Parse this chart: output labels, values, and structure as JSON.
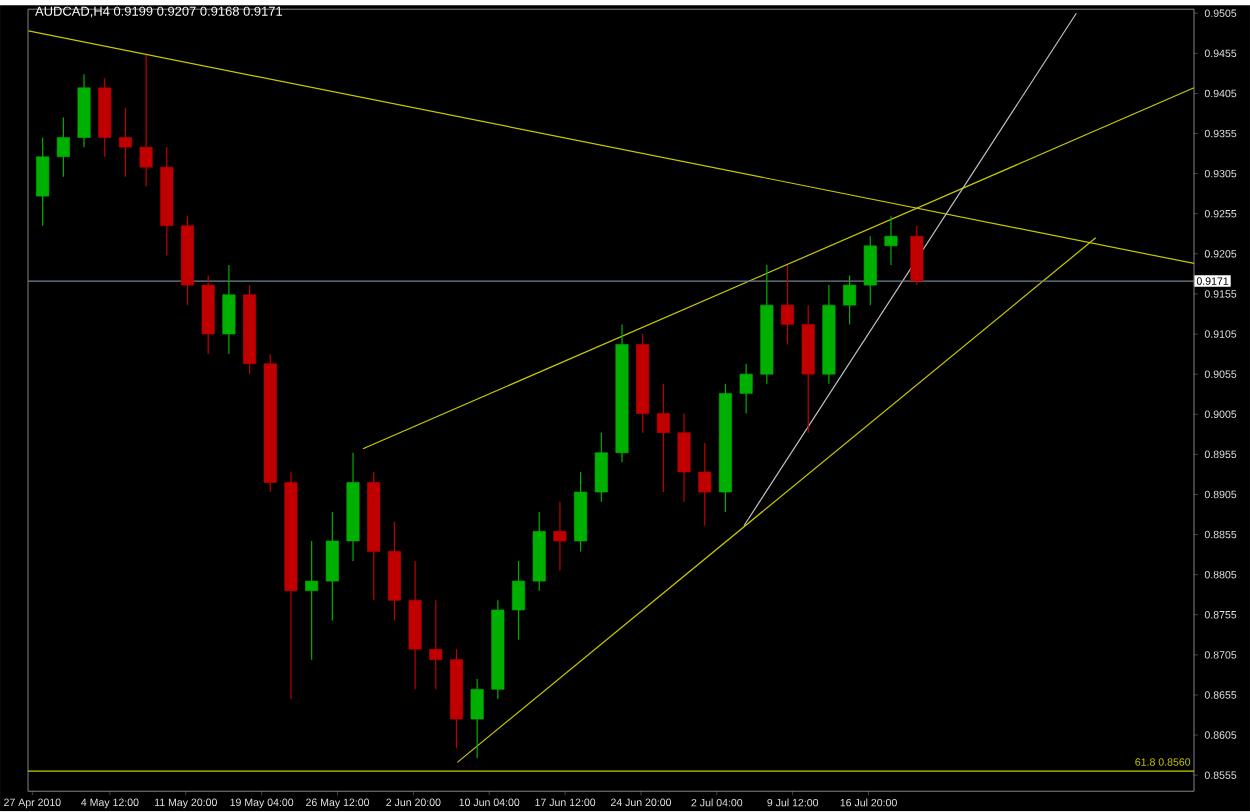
{
  "chart_data": {
    "type": "candlestick",
    "title": "AUDCAD,H4  0.9199 0.9207 0.9168 0.9171",
    "x": [
      "2010-04-28T00:00",
      "2010-04-30T00:00",
      "2010-05-02T00:00",
      "2010-05-04T00:00",
      "2010-05-06T00:00",
      "2010-05-08T00:00",
      "2010-05-10T00:00",
      "2010-05-12T00:00",
      "2010-05-14T00:00",
      "2010-05-16T00:00",
      "2010-05-18T00:00",
      "2010-05-20T00:00",
      "2010-05-22T00:00",
      "2010-05-24T00:00",
      "2010-05-26T00:00",
      "2010-05-28T00:00",
      "2010-05-30T00:00",
      "2010-06-01T00:00",
      "2010-06-03T00:00",
      "2010-06-05T00:00",
      "2010-06-07T00:00",
      "2010-06-09T00:00",
      "2010-06-11T00:00",
      "2010-06-13T00:00",
      "2010-06-15T00:00",
      "2010-06-17T00:00",
      "2010-06-19T00:00",
      "2010-06-21T00:00",
      "2010-06-23T00:00",
      "2010-06-25T00:00",
      "2010-06-27T00:00",
      "2010-06-29T00:00",
      "2010-07-01T00:00",
      "2010-07-03T00:00",
      "2010-07-05T00:00",
      "2010-07-07T00:00",
      "2010-07-09T00:00",
      "2010-07-11T00:00",
      "2010-07-13T00:00",
      "2010-07-15T00:00",
      "2010-07-17T00:00",
      "2010-07-19T00:00",
      "2010-07-21T12:00"
    ],
    "ohlc": [
      [
        0.9277,
        0.935,
        0.924,
        0.9326
      ],
      [
        0.9326,
        0.9375,
        0.9301,
        0.935
      ],
      [
        0.935,
        0.9429,
        0.9338,
        0.9412
      ],
      [
        0.9412,
        0.9424,
        0.9326,
        0.935
      ],
      [
        0.935,
        0.9387,
        0.9301,
        0.9338
      ],
      [
        0.9338,
        0.9453,
        0.9289,
        0.9313
      ],
      [
        0.9313,
        0.9338,
        0.9203,
        0.924
      ],
      [
        0.924,
        0.9252,
        0.9141,
        0.9166
      ],
      [
        0.9166,
        0.9178,
        0.908,
        0.9105
      ],
      [
        0.9105,
        0.9191,
        0.908,
        0.9154
      ],
      [
        0.9154,
        0.9166,
        0.9055,
        0.9068
      ],
      [
        0.9068,
        0.908,
        0.8908,
        0.892
      ],
      [
        0.892,
        0.8933,
        0.865,
        0.8785
      ],
      [
        0.8785,
        0.8847,
        0.8699,
        0.8797
      ],
      [
        0.8797,
        0.8883,
        0.8748,
        0.8847
      ],
      [
        0.8847,
        0.8957,
        0.8822,
        0.892
      ],
      [
        0.892,
        0.8933,
        0.8773,
        0.8834
      ],
      [
        0.8834,
        0.8871,
        0.8748,
        0.8773
      ],
      [
        0.8773,
        0.8822,
        0.8662,
        0.8712
      ],
      [
        0.8712,
        0.8773,
        0.8662,
        0.8699
      ],
      [
        0.8699,
        0.8712,
        0.8589,
        0.8625
      ],
      [
        0.8625,
        0.8675,
        0.8576,
        0.8662
      ],
      [
        0.8662,
        0.8773,
        0.865,
        0.8761
      ],
      [
        0.8761,
        0.8822,
        0.8724,
        0.8797
      ],
      [
        0.8797,
        0.8883,
        0.8785,
        0.8859
      ],
      [
        0.8859,
        0.8896,
        0.881,
        0.8847
      ],
      [
        0.8847,
        0.8933,
        0.8834,
        0.8908
      ],
      [
        0.8908,
        0.8982,
        0.8896,
        0.8957
      ],
      [
        0.8957,
        0.9117,
        0.8945,
        0.9092
      ],
      [
        0.9092,
        0.9105,
        0.8982,
        0.9006
      ],
      [
        0.9006,
        0.9043,
        0.8908,
        0.8982
      ],
      [
        0.8982,
        0.9006,
        0.8896,
        0.8933
      ],
      [
        0.8933,
        0.8969,
        0.8866,
        0.8908
      ],
      [
        0.8908,
        0.9043,
        0.8883,
        0.9031
      ],
      [
        0.9031,
        0.9068,
        0.9006,
        0.9055
      ],
      [
        0.9055,
        0.9191,
        0.9043,
        0.9141
      ],
      [
        0.9141,
        0.9191,
        0.9092,
        0.9117
      ],
      [
        0.9117,
        0.9141,
        0.8982,
        0.9055
      ],
      [
        0.9055,
        0.9166,
        0.9043,
        0.9141
      ],
      [
        0.9141,
        0.9178,
        0.9117,
        0.9166
      ],
      [
        0.9166,
        0.9227,
        0.9141,
        0.9215
      ],
      [
        0.9215,
        0.9252,
        0.9191,
        0.9227
      ],
      [
        0.9227,
        0.924,
        0.9166,
        0.9171
      ]
    ],
    "colors": [
      "#00b000",
      "#00b000",
      "#00b000",
      "#c00000",
      "#c00000",
      "#c00000",
      "#c00000",
      "#c00000",
      "#c00000",
      "#00b000",
      "#c00000",
      "#c00000",
      "#c00000",
      "#00b000",
      "#00b000",
      "#00b000",
      "#c00000",
      "#c00000",
      "#c00000",
      "#c00000",
      "#c00000",
      "#00b000",
      "#00b000",
      "#00b000",
      "#00b000",
      "#c00000",
      "#00b000",
      "#00b000",
      "#00b000",
      "#c00000",
      "#c00000",
      "#c00000",
      "#c00000",
      "#00b000",
      "#00b000",
      "#00b000",
      "#c00000",
      "#c00000",
      "#00b000",
      "#00b000",
      "#00b000",
      "#00b000",
      "#c00000"
    ],
    "series": [
      {
        "type": "line",
        "color": "#c8c800",
        "x": [
          "2010-04-26T15:00",
          "2010-08-17T07:00"
        ],
        "values": [
          0.9483,
          0.9193
        ]
      },
      {
        "type": "line",
        "color": "#c8c800",
        "x": [
          "2010-05-28T23:00",
          "2010-08-17T07:00"
        ],
        "values": [
          0.8962,
          0.9412
        ]
      },
      {
        "type": "line",
        "color": "#c8c800",
        "x": [
          "2010-06-07T02:00",
          "2010-08-07T19:00"
        ],
        "values": [
          0.8571,
          0.9225
        ]
      },
      {
        "type": "line",
        "color": "#c0c0c0",
        "x": [
          "2010-07-04T19:00",
          "2010-08-05T22:00"
        ],
        "values": [
          0.8866,
          0.9505
        ]
      }
    ],
    "ref_lines": [
      {
        "axis": "y",
        "value": 0.9171,
        "label": "0.9171",
        "color": "#708090"
      },
      {
        "axis": "y",
        "value": 0.856,
        "label": "61.8  0.8560",
        "color": "#c8c800"
      }
    ],
    "xlim": [
      "2010-04-26T14:00",
      "2010-08-17T07:00"
    ],
    "ylim": [
      0.8535,
      0.951
    ],
    "xticks": [
      {
        "value": "2010-04-27T00:00",
        "label": "27 Apr 2010"
      },
      {
        "value": "2010-05-04T12:00",
        "label": "4 May 12:00"
      },
      {
        "value": "2010-05-11T20:00",
        "label": "11 May 20:00"
      },
      {
        "value": "2010-05-19T04:00",
        "label": "19 May 04:00"
      },
      {
        "value": "2010-05-26T12:00",
        "label": "26 May 12:00"
      },
      {
        "value": "2010-06-02T20:00",
        "label": "2 Jun 20:00"
      },
      {
        "value": "2010-06-10T04:00",
        "label": "10 Jun 04:00"
      },
      {
        "value": "2010-06-17T12:00",
        "label": "17 Jun 12:00"
      },
      {
        "value": "2010-06-24T20:00",
        "label": "24 Jun 20:00"
      },
      {
        "value": "2010-07-02T04:00",
        "label": "2 Jul 04:00"
      },
      {
        "value": "2010-07-09T12:00",
        "label": "9 Jul 12:00"
      },
      {
        "value": "2010-07-16T20:00",
        "label": "16 Jul 20:00"
      }
    ],
    "yticks": [
      "0.8555",
      "0.8605",
      "0.8655",
      "0.8705",
      "0.8755",
      "0.8805",
      "0.8855",
      "0.8905",
      "0.8955",
      "0.9005",
      "0.9055",
      "0.9105",
      "0.9155",
      "0.9205",
      "0.9255",
      "0.9305",
      "0.9355",
      "0.9405",
      "0.9455",
      "0.9505"
    ]
  }
}
